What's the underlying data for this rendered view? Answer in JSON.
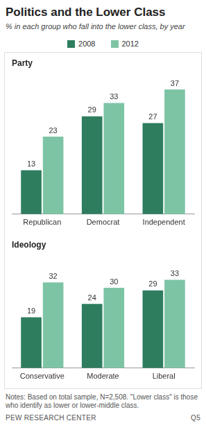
{
  "title": "Politics and the Lower Class",
  "subtitle": "% in each group who fall into the lower class, by year",
  "notes": "Notes: Based on total sample, N=2,508. \"Lower class\" is those who identify as lower or lower-middle class.",
  "source": "PEW RESEARCH CENTER",
  "source_code": "Q5",
  "chart_data": [
    {
      "type": "bar",
      "title": "Party",
      "categories": [
        "Republican",
        "Democrat",
        "Independent"
      ],
      "series": [
        {
          "name": "2008",
          "color": "#2e7d5f",
          "values": [
            13,
            29,
            27
          ]
        },
        {
          "name": "2012",
          "color": "#7dc4a5",
          "values": [
            23,
            33,
            37
          ]
        }
      ],
      "ylim": [
        0,
        40
      ],
      "grid": false,
      "data_labels": true,
      "tick_labels": "x",
      "legend": "top"
    },
    {
      "type": "bar",
      "title": "Ideology",
      "categories": [
        "Conservative",
        "Moderate",
        "Liberal"
      ],
      "series": [
        {
          "name": "2008",
          "color": "#2e7d5f",
          "values": [
            19,
            24,
            29
          ]
        },
        {
          "name": "2012",
          "color": "#7dc4a5",
          "values": [
            32,
            30,
            33
          ]
        }
      ],
      "ylim": [
        0,
        40
      ],
      "grid": false,
      "data_labels": true,
      "tick_labels": "x"
    }
  ]
}
